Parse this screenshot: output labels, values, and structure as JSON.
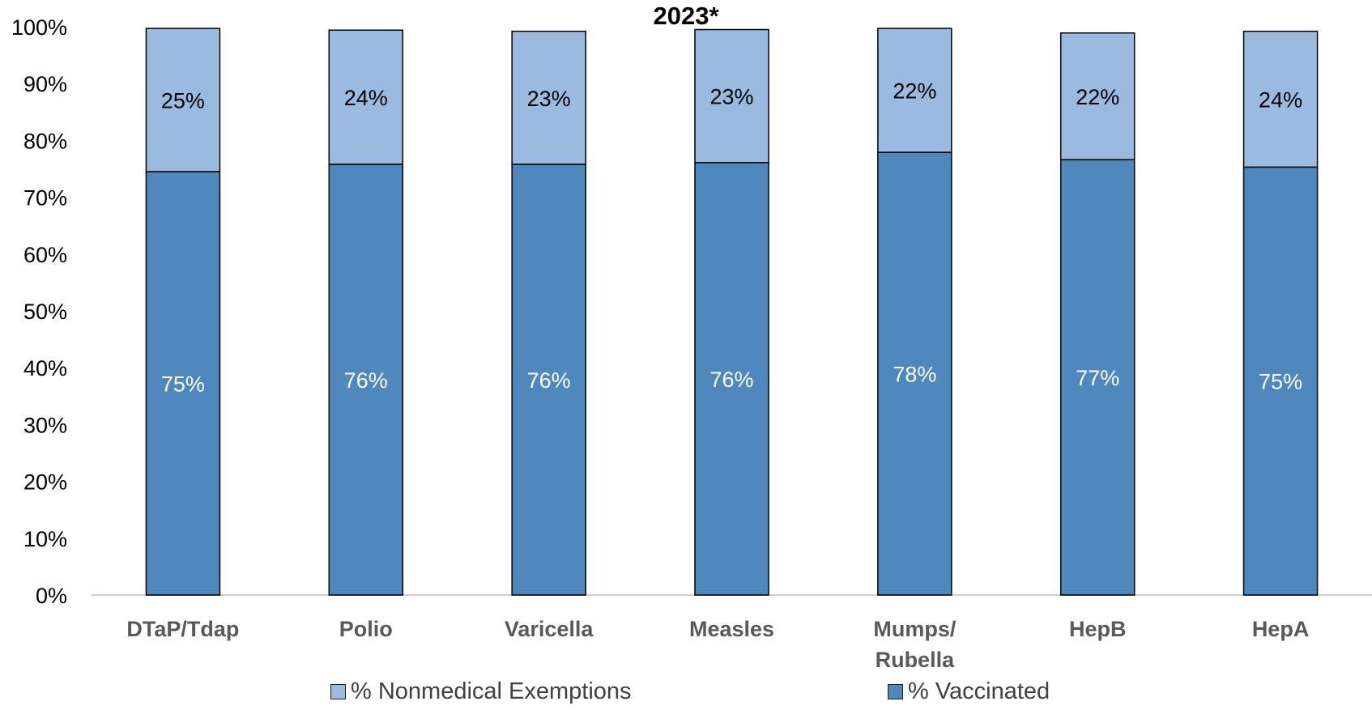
{
  "chart_data": {
    "type": "bar",
    "stacked": true,
    "title": "2023*",
    "xlabel": "",
    "ylabel": "",
    "categories": [
      "DTaP/Tdap",
      "Polio",
      "Varicella",
      "Measles",
      "Mumps/\nRubella",
      "HepB",
      "HepA"
    ],
    "series": [
      {
        "name": "% Vaccinated",
        "color": "#4F88BC",
        "values": [
          74.5,
          75.8,
          75.8,
          76.1,
          77.9,
          76.6,
          75.3
        ],
        "labels": [
          "75%",
          "76%",
          "76%",
          "76%",
          "78%",
          "77%",
          "75%"
        ]
      },
      {
        "name": "% Nonmedical Exemptions",
        "color": "#9BBAE0",
        "values": [
          25.2,
          23.6,
          23.4,
          23.4,
          21.8,
          22.3,
          23.9
        ],
        "labels": [
          "25%",
          "24%",
          "23%",
          "23%",
          "22%",
          "22%",
          "24%"
        ]
      }
    ],
    "ylim": [
      0,
      100
    ],
    "yticks": [
      "0%",
      "10%",
      "20%",
      "30%",
      "40%",
      "50%",
      "60%",
      "70%",
      "80%",
      "90%",
      "100%"
    ],
    "grid": false,
    "legend_position": "bottom",
    "legend_order": [
      "% Nonmedical Exemptions",
      "% Vaccinated"
    ]
  }
}
